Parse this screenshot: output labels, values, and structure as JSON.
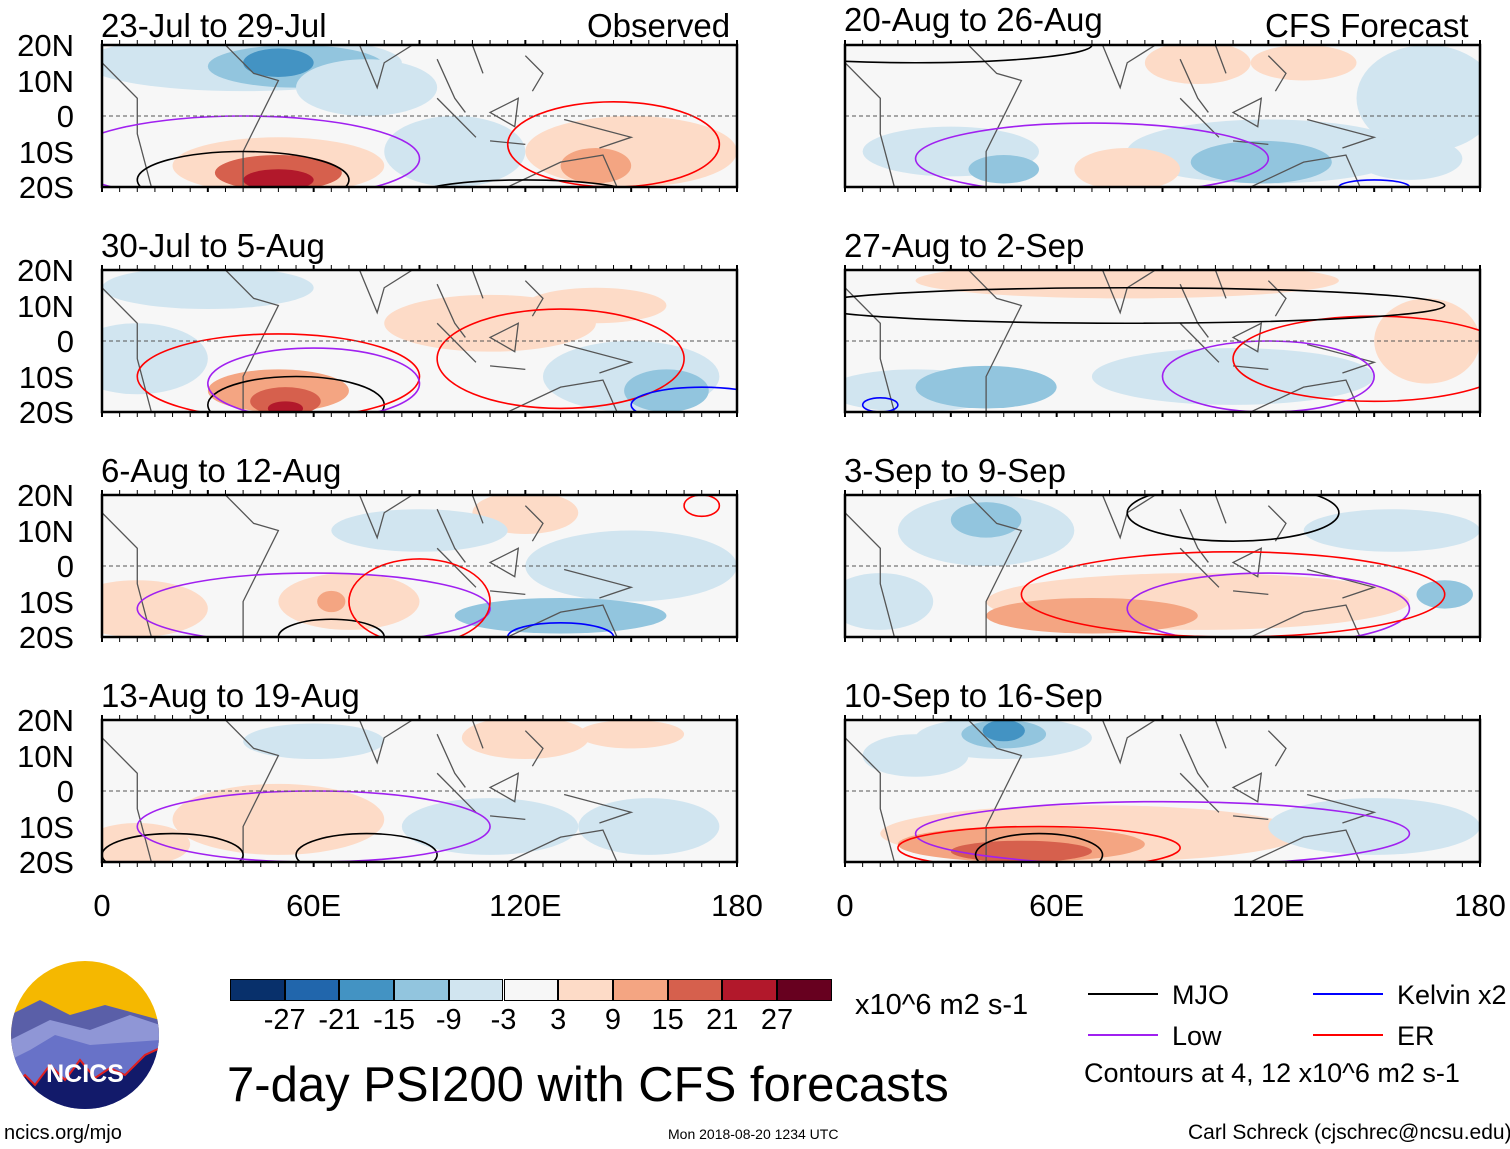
{
  "figure": {
    "title": "7-day PSI200 with CFS forecasts",
    "left_header": "Observed",
    "right_header": "CFS Forecast",
    "timestamp": "Mon 2018-08-20 1234 UTC",
    "website": "ncics.org/mjo",
    "author": "Carl Schreck (cjschrec@ncsu.edu)",
    "logo_text": "NCICS"
  },
  "chart_data": {
    "type": "heatmap",
    "panels": [
      {
        "title": "23-Jul to 29-Jul",
        "kind": "Observed"
      },
      {
        "title": "30-Jul to 5-Aug",
        "kind": "Observed"
      },
      {
        "title": "6-Aug to 12-Aug",
        "kind": "Observed"
      },
      {
        "title": "13-Aug to 19-Aug",
        "kind": "Observed"
      },
      {
        "title": "20-Aug to 26-Aug",
        "kind": "CFS Forecast"
      },
      {
        "title": "27-Aug to 2-Sep",
        "kind": "CFS Forecast"
      },
      {
        "title": "3-Sep to 9-Sep",
        "kind": "CFS Forecast"
      },
      {
        "title": "10-Sep to 16-Sep",
        "kind": "CFS Forecast"
      }
    ],
    "y_ticks": [
      "20N",
      "10N",
      "0",
      "10S",
      "20S"
    ],
    "x_ticks": [
      "0",
      "60E",
      "120E",
      "180"
    ],
    "xlim": [
      0,
      180
    ],
    "ylim": [
      -20,
      20
    ],
    "colorbar": {
      "labels": [
        "-27",
        "-21",
        "-15",
        "-9",
        "-3",
        "3",
        "9",
        "15",
        "21",
        "27"
      ],
      "colors": [
        "#08306b",
        "#2166ac",
        "#4393c3",
        "#92c5de",
        "#d1e5f0",
        "#f7f7f7",
        "#fddbc7",
        "#f4a582",
        "#d6604d",
        "#b2182b",
        "#67001f"
      ],
      "units": "x10^6 m2 s-1"
    },
    "legend": [
      {
        "label": "MJO",
        "color": "#000000"
      },
      {
        "label": "Kelvin x2",
        "color": "#0000ff"
      },
      {
        "label": "Low",
        "color": "#a020f0"
      },
      {
        "label": "ER",
        "color": "#ff0000"
      }
    ],
    "contour_note": "Contours at 4, 12 x10^6 m2 s-1"
  }
}
